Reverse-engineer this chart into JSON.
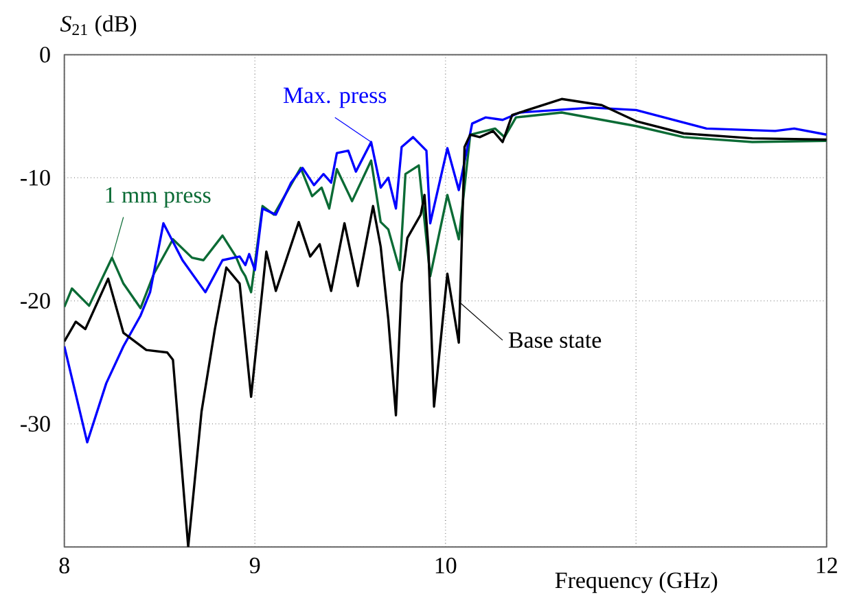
{
  "chart_data": {
    "type": "line",
    "xlabel": "Frequency (GHz)",
    "ylabel": "*S*$_{21}$ (dB)",
    "xlim": [
      8,
      12
    ],
    "ylim": [
      -40,
      0
    ],
    "xticks": [
      8,
      9,
      10,
      {
        "value": 11,
        "label": null
      },
      12
    ],
    "yticks": [
      {
        "value": -40,
        "label": null
      },
      -30,
      -20,
      -10,
      0
    ],
    "grid": true,
    "line_style": "solid",
    "marker": "none",
    "series": [
      {
        "name": "1 mm press",
        "color": "#0b6b35",
        "x": [
          8,
          8.04,
          8.13,
          8.25,
          8.31,
          8.4,
          8.47,
          8.57,
          8.67,
          8.73,
          8.83,
          8.9,
          8.93,
          8.95,
          8.98,
          9.04,
          9.1,
          9.24,
          9.3,
          9.35,
          9.39,
          9.43,
          9.51,
          9.61,
          9.66,
          9.7,
          9.76,
          9.79,
          9.86,
          9.92,
          10.01,
          10.07,
          10.13,
          10.26,
          10.31,
          10.37,
          10.61,
          11,
          11.25,
          11.61,
          12
        ],
        "values": [
          -20.5,
          -19,
          -20.4,
          -16.5,
          -18.6,
          -20.6,
          -17.8,
          -15,
          -16.5,
          -16.7,
          -14.7,
          -16.4,
          -17.5,
          -18,
          -19.3,
          -12.3,
          -13,
          -9.2,
          -11.5,
          -10.8,
          -12.5,
          -9.3,
          -11.9,
          -8.6,
          -13.6,
          -14.2,
          -17.5,
          -9.7,
          -9,
          -18,
          -11.4,
          -15,
          -6.5,
          -6,
          -6.7,
          -5.1,
          -4.7,
          -5.8,
          -6.7,
          -7.1,
          -7
        ]
      },
      {
        "name": "Max. press",
        "color": "#0000ff",
        "x": [
          8,
          8.12,
          8.22,
          8.31,
          8.4,
          8.45,
          8.52,
          8.62,
          8.74,
          8.83,
          8.92,
          8.95,
          8.97,
          9,
          9.04,
          9.11,
          9.19,
          9.25,
          9.31,
          9.36,
          9.4,
          9.43,
          9.49,
          9.53,
          9.61,
          9.66,
          9.7,
          9.74,
          9.77,
          9.83,
          9.9,
          9.92,
          10.01,
          10.07,
          10.14,
          10.21,
          10.3,
          10.39,
          10.77,
          11,
          11.37,
          11.73,
          11.83,
          12
        ],
        "values": [
          -23.7,
          -31.5,
          -26.7,
          -23.7,
          -21.2,
          -19.3,
          -13.7,
          -16.7,
          -19.3,
          -16.7,
          -16.4,
          -17.1,
          -16.2,
          -17.5,
          -12.5,
          -13,
          -10.4,
          -9.2,
          -10.6,
          -9.7,
          -10.4,
          -8,
          -7.8,
          -9.5,
          -7.1,
          -10.8,
          -10,
          -12.5,
          -7.5,
          -6.7,
          -7.8,
          -13.7,
          -7.6,
          -11,
          -5.6,
          -5.1,
          -5.3,
          -4.7,
          -4.3,
          -4.5,
          -6,
          -6.2,
          -6,
          -6.5
        ]
      },
      {
        "name": "Base state",
        "color": "#000000",
        "x": [
          8,
          8.06,
          8.11,
          8.23,
          8.31,
          8.43,
          8.54,
          8.57,
          8.65,
          8.72,
          8.79,
          8.85,
          8.92,
          8.98,
          9.01,
          9.06,
          9.11,
          9.23,
          9.29,
          9.34,
          9.4,
          9.47,
          9.54,
          9.62,
          9.66,
          9.7,
          9.74,
          9.77,
          9.8,
          9.87,
          9.89,
          9.91,
          9.94,
          10.01,
          10.07,
          10.1,
          10.13,
          10.18,
          10.25,
          10.3,
          10.35,
          10.61,
          10.82,
          11,
          11.25,
          11.61,
          12
        ],
        "values": [
          -23.3,
          -21.7,
          -22.3,
          -18.2,
          -22.6,
          -24,
          -24.2,
          -24.8,
          -40,
          -29,
          -22.3,
          -17.3,
          -18.6,
          -27.8,
          -23.4,
          -16,
          -19.2,
          -13.6,
          -16.4,
          -15.4,
          -19.2,
          -13.7,
          -18.8,
          -12.3,
          -15.6,
          -21.5,
          -29.3,
          -18.6,
          -14.9,
          -13,
          -11.4,
          -15.6,
          -28.6,
          -17.8,
          -23.4,
          -7.5,
          -6.5,
          -6.7,
          -6.2,
          -7.1,
          -4.9,
          -3.6,
          -4.1,
          -5.4,
          -6.4,
          -6.8,
          -6.9
        ]
      }
    ]
  }
}
